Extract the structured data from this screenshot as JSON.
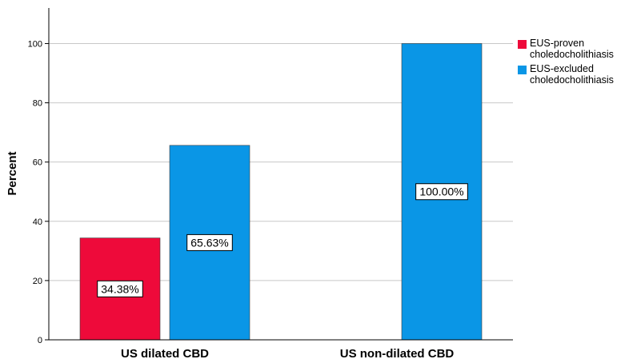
{
  "chart_data": {
    "type": "bar",
    "categories": [
      "US dilated CBD",
      "US non-dilated CBD"
    ],
    "series": [
      {
        "name": "EUS-proven choledocholithiasis",
        "legend_lines": [
          "EUS-proven",
          "choledocholithiasis"
        ],
        "color": "#ee0a3a",
        "values": [
          34.38,
          0
        ],
        "labels": [
          "34.38%",
          ""
        ]
      },
      {
        "name": "EUS-excluded choledocholithiasis",
        "legend_lines": [
          "EUS-excluded",
          "choledocholithiasis"
        ],
        "color": "#0a96e6",
        "values": [
          65.63,
          100
        ],
        "labels": [
          "65.63%",
          "100.00%"
        ]
      }
    ],
    "title": "",
    "xlabel": "",
    "ylabel": "Percent",
    "ylim": [
      0,
      112
    ],
    "yticks": [
      0,
      20,
      40,
      60,
      80,
      100
    ],
    "grid": true,
    "legend_position": "right-top"
  }
}
